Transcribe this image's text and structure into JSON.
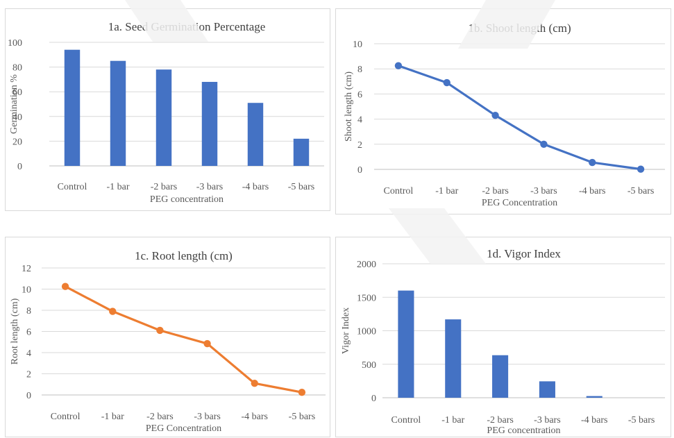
{
  "chart_data": [
    {
      "id": "a",
      "type": "bar",
      "title": "1a. Seed Germination Percentage",
      "xlabel": "PEG concentration",
      "ylabel": "Germination %",
      "categories": [
        "Control",
        "-1 bar",
        "-2 bars",
        "-3 bars",
        "-4 bars",
        "-5 bars"
      ],
      "values": [
        94,
        85,
        78,
        68,
        51,
        22
      ],
      "ylim": [
        0,
        100
      ],
      "yticks": [
        0,
        20,
        40,
        60,
        80,
        100
      ],
      "color": "#4472c4",
      "grid": true
    },
    {
      "id": "b",
      "type": "line",
      "title": "1b. Shoot length (cm)",
      "xlabel": "PEG Concentration",
      "ylabel": "Shoot length (cm)",
      "categories": [
        "Control",
        "-1 bar",
        "-2 bars",
        "-3 bars",
        "-4 bars",
        "-5 bars"
      ],
      "values": [
        8.25,
        6.9,
        4.3,
        2.0,
        0.55,
        0.02
      ],
      "ylim": [
        0,
        10
      ],
      "yticks": [
        0,
        2,
        4,
        6,
        8,
        10
      ],
      "color": "#4472c4",
      "grid": true
    },
    {
      "id": "c",
      "type": "line",
      "title": "1c. Root length (cm)",
      "xlabel": "PEG Concentration",
      "ylabel": "Root length (cm)",
      "categories": [
        "Control",
        "-1 bar",
        "-2 bars",
        "-3 bars",
        "-4 bars",
        "-5 bars"
      ],
      "values": [
        10.25,
        7.9,
        6.1,
        4.85,
        1.1,
        0.25
      ],
      "ylim": [
        0,
        12
      ],
      "yticks": [
        0,
        2,
        4,
        6,
        8,
        10,
        12
      ],
      "color": "#ed7d31",
      "grid": true
    },
    {
      "id": "d",
      "type": "bar",
      "title": "1d. Vigor Index",
      "xlabel": "PEG concentration",
      "ylabel": "Vigor Index",
      "categories": [
        "Control",
        "-1 bar",
        "-2 bars",
        "-3 bars",
        "-4 bars",
        "-5 bars"
      ],
      "values": [
        1600,
        1170,
        635,
        245,
        25,
        0
      ],
      "ylim": [
        0,
        2000
      ],
      "yticks": [
        0,
        500,
        1000,
        1500,
        2000
      ],
      "color": "#4472c4",
      "grid": true
    }
  ]
}
